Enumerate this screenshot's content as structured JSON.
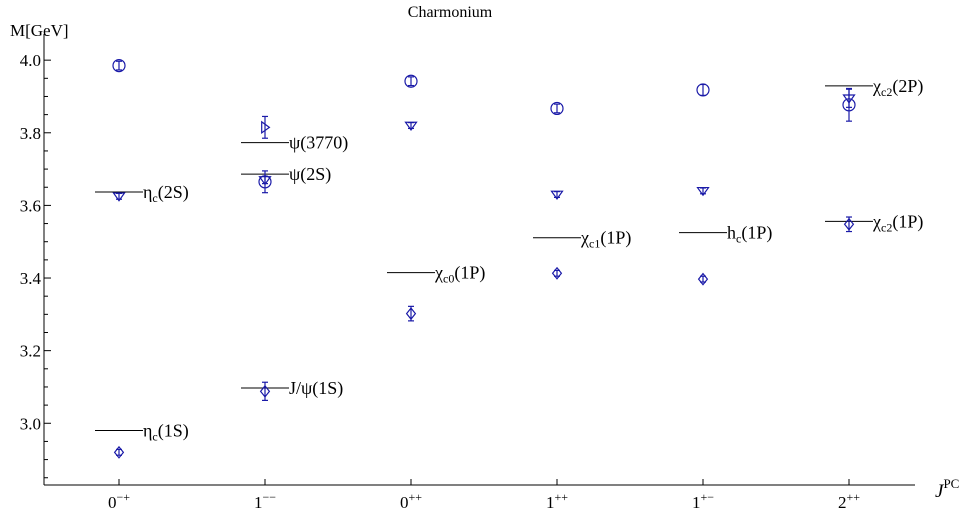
{
  "chart_data": {
    "type": "scatter",
    "title": "Charmonium",
    "ylabel": "M[GeV]",
    "xlabel": {
      "base": "J",
      "sup": "PC"
    },
    "ylim": [
      2.83,
      4.05
    ],
    "yticks": [
      "3.0",
      "3.2",
      "3.4",
      "3.6",
      "3.8",
      "4.0"
    ],
    "categories": [
      {
        "base": "0",
        "sup": "−+"
      },
      {
        "base": "1",
        "sup": "−−"
      },
      {
        "base": "0",
        "sup": "++"
      },
      {
        "base": "1",
        "sup": "++"
      },
      {
        "base": "1",
        "sup": "+−"
      },
      {
        "base": "2",
        "sup": "++"
      }
    ],
    "experimental": [
      {
        "cat": 0,
        "y": 2.98,
        "label": [
          {
            "t": "η"
          },
          {
            "t": "c",
            "sub": true
          },
          {
            "t": "(1S)"
          }
        ]
      },
      {
        "cat": 0,
        "y": 3.637,
        "label": [
          {
            "t": "η"
          },
          {
            "t": "c",
            "sub": true
          },
          {
            "t": "(2S)"
          }
        ]
      },
      {
        "cat": 1,
        "y": 3.097,
        "label": [
          {
            "t": "J/ψ(1S)"
          }
        ]
      },
      {
        "cat": 1,
        "y": 3.686,
        "label": [
          {
            "t": "ψ(2S)"
          }
        ]
      },
      {
        "cat": 1,
        "y": 3.773,
        "label": [
          {
            "t": "ψ(3770)"
          }
        ]
      },
      {
        "cat": 2,
        "y": 3.415,
        "label": [
          {
            "t": "χ"
          },
          {
            "t": "c0",
            "sub": true
          },
          {
            "t": "(1P)"
          }
        ]
      },
      {
        "cat": 3,
        "y": 3.511,
        "label": [
          {
            "t": "χ"
          },
          {
            "t": "c1",
            "sub": true
          },
          {
            "t": "(1P)"
          }
        ]
      },
      {
        "cat": 4,
        "y": 3.525,
        "label": [
          {
            "t": "h"
          },
          {
            "t": "c",
            "sub": true
          },
          {
            "t": "(1P)"
          }
        ]
      },
      {
        "cat": 5,
        "y": 3.556,
        "label": [
          {
            "t": "χ"
          },
          {
            "t": "c2",
            "sub": true
          },
          {
            "t": "(1P)"
          }
        ]
      },
      {
        "cat": 5,
        "y": 3.929,
        "label": [
          {
            "t": "χ"
          },
          {
            "t": "c2",
            "sub": true
          },
          {
            "t": "(2P)"
          }
        ]
      }
    ],
    "lattice": [
      {
        "cat": 0,
        "y": 2.92,
        "err": 0.008,
        "marker": "diamond"
      },
      {
        "cat": 0,
        "y": 3.625,
        "err": 0.008,
        "marker": "triangle-down"
      },
      {
        "cat": 0,
        "y": 3.985,
        "err": 0.012,
        "marker": "circle"
      },
      {
        "cat": 1,
        "y": 3.088,
        "err": 0.025,
        "marker": "diamond"
      },
      {
        "cat": 1,
        "y": 3.665,
        "err": 0.03,
        "marker": "circle"
      },
      {
        "cat": 1,
        "y": 3.67,
        "err": 0.01,
        "marker": "triangle-down"
      },
      {
        "cat": 1,
        "y": 3.815,
        "err": 0.03,
        "marker": "triangle-right"
      },
      {
        "cat": 2,
        "y": 3.302,
        "err": 0.02,
        "marker": "diamond"
      },
      {
        "cat": 2,
        "y": 3.82,
        "err": 0.008,
        "marker": "triangle-down"
      },
      {
        "cat": 2,
        "y": 3.942,
        "err": 0.012,
        "marker": "circle"
      },
      {
        "cat": 3,
        "y": 3.413,
        "err": 0.008,
        "marker": "diamond"
      },
      {
        "cat": 3,
        "y": 3.63,
        "err": 0.008,
        "marker": "triangle-down"
      },
      {
        "cat": 3,
        "y": 3.867,
        "err": 0.012,
        "marker": "circle"
      },
      {
        "cat": 4,
        "y": 3.397,
        "err": 0.008,
        "marker": "diamond"
      },
      {
        "cat": 4,
        "y": 3.64,
        "err": 0.008,
        "marker": "triangle-down"
      },
      {
        "cat": 4,
        "y": 3.918,
        "err": 0.015,
        "marker": "circle"
      },
      {
        "cat": 5,
        "y": 3.548,
        "err": 0.02,
        "marker": "diamond"
      },
      {
        "cat": 5,
        "y": 3.895,
        "err": 0.025,
        "marker": "triangle-down"
      },
      {
        "cat": 5,
        "y": 3.877,
        "err": 0.045,
        "marker": "circle"
      }
    ],
    "colors": {
      "lattice": "#1a1aa8",
      "experimental": "#000000"
    }
  }
}
